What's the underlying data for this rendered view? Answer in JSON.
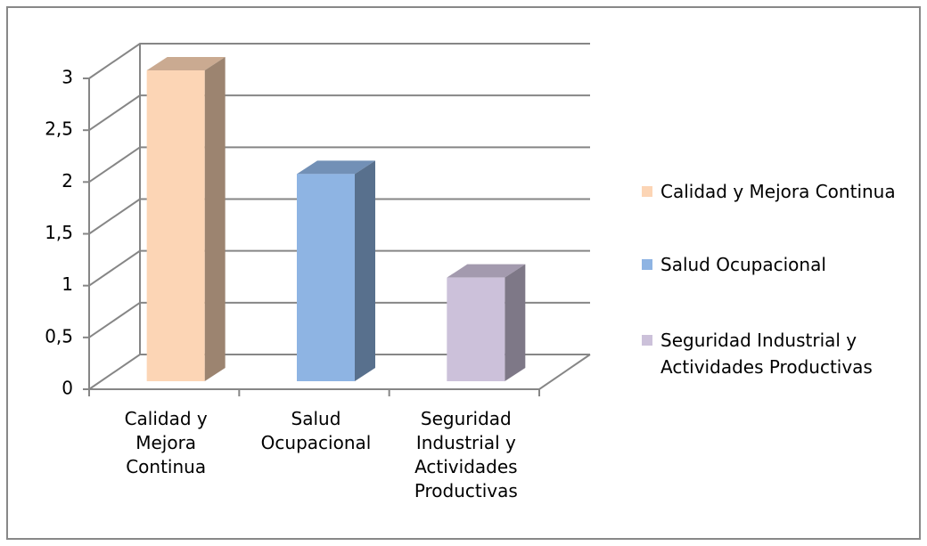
{
  "chart_data": {
    "type": "bar3d",
    "categories": [
      "Calidad y Mejora Continua",
      "Salud Ocupacional",
      "Seguridad Industrial y Actividades Productivas"
    ],
    "values": [
      3,
      2,
      1
    ],
    "colors": [
      "#fcd5b5",
      "#8eb4e3",
      "#ccc1da"
    ],
    "ylim": [
      0,
      3
    ],
    "yticks": [
      0,
      {
        "value": 0.5,
        "label": "0,5"
      },
      1,
      {
        "value": 1.5,
        "label": "1,5"
      },
      2,
      {
        "value": 2.5,
        "label": "2,5"
      },
      3
    ],
    "grid": true,
    "legend": "right"
  }
}
